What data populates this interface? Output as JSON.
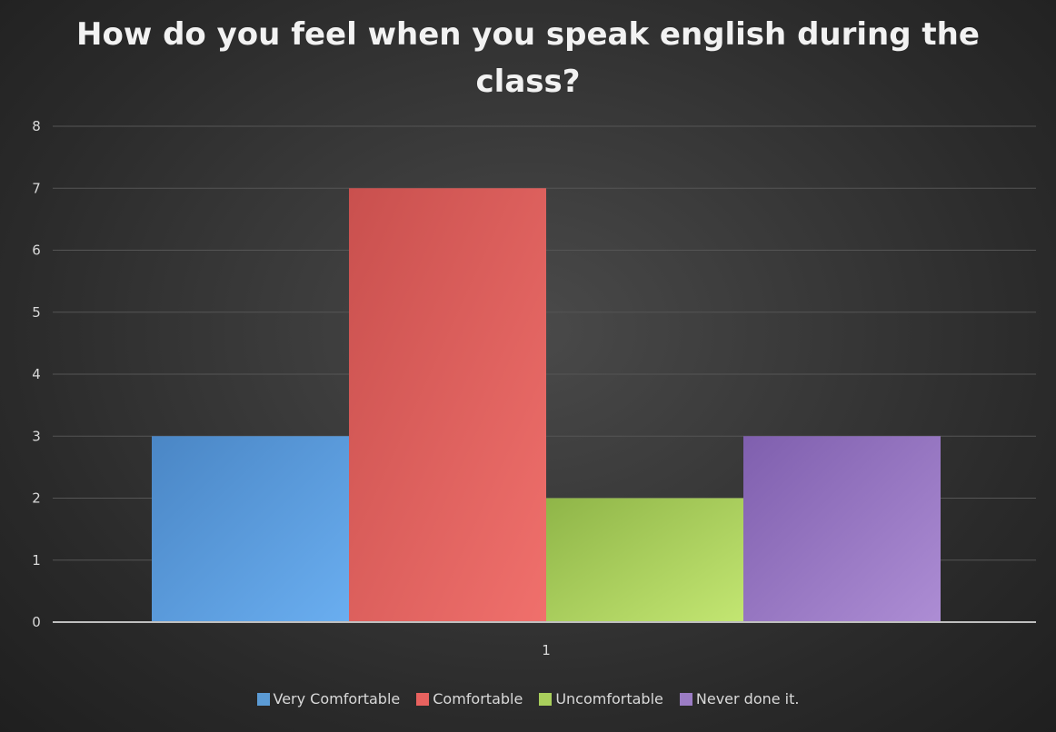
{
  "chart_data": {
    "type": "bar",
    "title_lines": [
      "How do you feel when you speak english during the",
      "class?"
    ],
    "categories": [
      "1"
    ],
    "series": [
      {
        "name": "Very Comfortable",
        "values": [
          3
        ],
        "color": "#5b9bd5"
      },
      {
        "name": "Comfortable",
        "values": [
          7
        ],
        "color": "#e8625f"
      },
      {
        "name": "Uncomfortable",
        "values": [
          2
        ],
        "color": "#a9cf5c"
      },
      {
        "name": "Never done it.",
        "values": [
          3
        ],
        "color": "#9b7cc4"
      }
    ],
    "ylim": [
      0,
      8
    ],
    "yticks": [
      "0",
      "1",
      "2",
      "3",
      "4",
      "5",
      "6",
      "7",
      "8"
    ],
    "grid": true,
    "legend_position": "bottom"
  }
}
